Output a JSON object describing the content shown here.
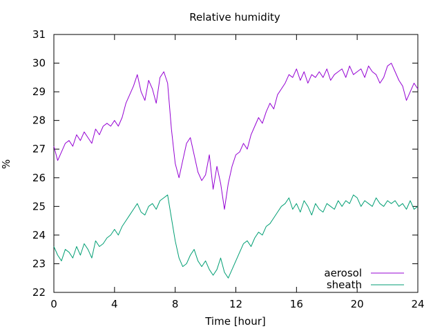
{
  "chart_data": {
    "type": "line",
    "title": "Relative humidity",
    "xlabel": "Time [hour]",
    "ylabel": "%",
    "xlim": [
      0,
      24
    ],
    "ylim": [
      22,
      31
    ],
    "xticks": [
      0,
      4,
      8,
      12,
      16,
      20,
      24
    ],
    "yticks": [
      22,
      23,
      24,
      25,
      26,
      27,
      28,
      29,
      30,
      31
    ],
    "grid": false,
    "legend_position": "bottom-right",
    "series": [
      {
        "name": "aerosol",
        "color": "#9400d3",
        "x": [
          0,
          0.25,
          0.5,
          0.75,
          1,
          1.25,
          1.5,
          1.75,
          2,
          2.25,
          2.5,
          2.75,
          3,
          3.25,
          3.5,
          3.75,
          4,
          4.25,
          4.5,
          4.75,
          5,
          5.25,
          5.5,
          5.75,
          6,
          6.25,
          6.5,
          6.75,
          7,
          7.25,
          7.5,
          7.75,
          8,
          8.25,
          8.5,
          8.75,
          9,
          9.25,
          9.5,
          9.75,
          10,
          10.25,
          10.5,
          10.75,
          11,
          11.25,
          11.5,
          11.75,
          12,
          12.25,
          12.5,
          12.75,
          13,
          13.25,
          13.5,
          13.75,
          14,
          14.25,
          14.5,
          14.75,
          15,
          15.25,
          15.5,
          15.75,
          16,
          16.25,
          16.5,
          16.75,
          17,
          17.25,
          17.5,
          17.75,
          18,
          18.25,
          18.5,
          18.75,
          19,
          19.25,
          19.5,
          19.75,
          20,
          20.25,
          20.5,
          20.75,
          21,
          21.25,
          21.5,
          21.75,
          22,
          22.25,
          22.5,
          22.75,
          23,
          23.25,
          23.5,
          23.75,
          24
        ],
        "y": [
          27.1,
          26.6,
          26.9,
          27.2,
          27.3,
          27.1,
          27.5,
          27.3,
          27.6,
          27.4,
          27.2,
          27.7,
          27.5,
          27.8,
          27.9,
          27.8,
          28.0,
          27.8,
          28.1,
          28.6,
          28.9,
          29.2,
          29.6,
          29.0,
          28.7,
          29.4,
          29.1,
          28.6,
          29.5,
          29.7,
          29.3,
          27.7,
          26.5,
          26.0,
          26.6,
          27.2,
          27.4,
          26.8,
          26.2,
          25.9,
          26.1,
          26.8,
          25.6,
          26.4,
          25.8,
          24.9,
          25.8,
          26.4,
          26.8,
          26.9,
          27.2,
          27.0,
          27.5,
          27.8,
          28.1,
          27.9,
          28.3,
          28.6,
          28.4,
          28.9,
          29.1,
          29.3,
          29.6,
          29.5,
          29.8,
          29.4,
          29.7,
          29.3,
          29.6,
          29.5,
          29.7,
          29.5,
          29.8,
          29.4,
          29.6,
          29.7,
          29.8,
          29.5,
          29.9,
          29.6,
          29.7,
          29.8,
          29.5,
          29.9,
          29.7,
          29.6,
          29.3,
          29.5,
          29.9,
          30.0,
          29.7,
          29.4,
          29.2,
          28.7,
          29.0,
          29.3,
          29.1
        ]
      },
      {
        "name": "sheath",
        "color": "#009e73",
        "x": [
          0,
          0.25,
          0.5,
          0.75,
          1,
          1.25,
          1.5,
          1.75,
          2,
          2.25,
          2.5,
          2.75,
          3,
          3.25,
          3.5,
          3.75,
          4,
          4.25,
          4.5,
          4.75,
          5,
          5.25,
          5.5,
          5.75,
          6,
          6.25,
          6.5,
          6.75,
          7,
          7.25,
          7.5,
          7.75,
          8,
          8.25,
          8.5,
          8.75,
          9,
          9.25,
          9.5,
          9.75,
          10,
          10.25,
          10.5,
          10.75,
          11,
          11.25,
          11.5,
          11.75,
          12,
          12.25,
          12.5,
          12.75,
          13,
          13.25,
          13.5,
          13.75,
          14,
          14.25,
          14.5,
          14.75,
          15,
          15.25,
          15.5,
          15.75,
          16,
          16.25,
          16.5,
          16.75,
          17,
          17.25,
          17.5,
          17.75,
          18,
          18.25,
          18.5,
          18.75,
          19,
          19.25,
          19.5,
          19.75,
          20,
          20.25,
          20.5,
          20.75,
          21,
          21.25,
          21.5,
          21.75,
          22,
          22.25,
          22.5,
          22.75,
          23,
          23.25,
          23.5,
          23.75,
          24
        ],
        "y": [
          23.6,
          23.3,
          23.1,
          23.5,
          23.4,
          23.2,
          23.6,
          23.3,
          23.7,
          23.5,
          23.2,
          23.8,
          23.6,
          23.7,
          23.9,
          24.0,
          24.2,
          24.0,
          24.3,
          24.5,
          24.7,
          24.9,
          25.1,
          24.8,
          24.7,
          25.0,
          25.1,
          24.9,
          25.2,
          25.3,
          25.4,
          24.6,
          23.8,
          23.2,
          22.9,
          23.0,
          23.3,
          23.5,
          23.1,
          22.9,
          23.1,
          22.8,
          22.6,
          22.8,
          23.2,
          22.7,
          22.5,
          22.8,
          23.1,
          23.4,
          23.7,
          23.8,
          23.6,
          23.9,
          24.1,
          24.0,
          24.3,
          24.4,
          24.6,
          24.8,
          25.0,
          25.1,
          25.3,
          24.9,
          25.1,
          24.8,
          25.2,
          25.0,
          24.7,
          25.1,
          24.9,
          24.8,
          25.1,
          25.0,
          24.9,
          25.2,
          25.0,
          25.2,
          25.1,
          25.4,
          25.3,
          25.0,
          25.2,
          25.1,
          25.0,
          25.3,
          25.1,
          25.0,
          25.2,
          25.1,
          25.2,
          25.0,
          25.1,
          24.9,
          25.2,
          24.9,
          25.0
        ]
      }
    ]
  }
}
